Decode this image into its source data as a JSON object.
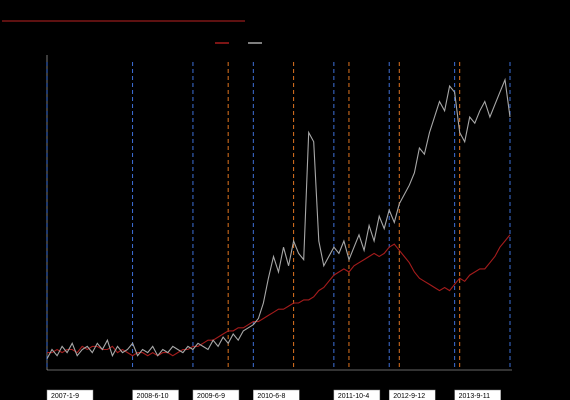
{
  "chart_data": {
    "type": "line",
    "categories": [
      "2007-1-9",
      null,
      null,
      null,
      null,
      null,
      null,
      null,
      null,
      null,
      null,
      null,
      null,
      null,
      null,
      null,
      null,
      "2008-6-10",
      null,
      null,
      null,
      null,
      null,
      null,
      null,
      null,
      null,
      null,
      null,
      "2009-6-9",
      null,
      null,
      null,
      null,
      null,
      null,
      null,
      null,
      null,
      null,
      null,
      "2010-6-8",
      null,
      null,
      null,
      null,
      null,
      null,
      null,
      null,
      null,
      null,
      null,
      null,
      null,
      null,
      null,
      "2011-10-4",
      null,
      null,
      null,
      null,
      null,
      null,
      null,
      null,
      null,
      null,
      "2012-9-12",
      null,
      null,
      null,
      null,
      null,
      null,
      null,
      null,
      null,
      null,
      null,
      null,
      "2013-9-11",
      null,
      null,
      null,
      null,
      null,
      null,
      null,
      null,
      null,
      null,
      null
    ],
    "series": [
      {
        "color": "#a51c1c",
        "values": [
          4,
          4,
          5,
          4,
          5,
          5,
          4,
          6,
          5,
          6,
          6,
          5,
          5,
          6,
          4,
          5,
          4,
          3,
          4,
          4,
          3,
          4,
          3,
          4,
          4,
          3,
          4,
          5,
          5,
          6,
          6,
          7,
          8,
          8,
          9,
          10,
          11,
          11,
          12,
          12,
          13,
          14,
          14,
          15,
          16,
          17,
          18,
          18,
          19,
          20,
          20,
          21,
          21,
          22,
          24,
          25,
          27,
          29,
          30,
          31,
          30,
          32,
          33,
          34,
          35,
          36,
          35,
          36,
          38,
          39,
          37,
          35,
          33,
          30,
          28,
          27,
          26,
          25,
          24,
          25,
          24,
          26,
          28,
          27,
          29,
          30,
          31,
          31,
          33,
          35,
          38,
          40,
          42
        ]
      },
      {
        "color": "#a8a8a8",
        "values": [
          2,
          5,
          3,
          6,
          4,
          7,
          3,
          5,
          6,
          4,
          7,
          5,
          8,
          3,
          6,
          4,
          5,
          7,
          3,
          5,
          4,
          6,
          3,
          5,
          4,
          6,
          5,
          4,
          6,
          5,
          7,
          6,
          5,
          8,
          6,
          9,
          7,
          10,
          8,
          11,
          12,
          13,
          15,
          20,
          28,
          35,
          30,
          38,
          32,
          40,
          36,
          34,
          75,
          72,
          40,
          32,
          35,
          38,
          36,
          40,
          34,
          38,
          42,
          37,
          45,
          40,
          48,
          44,
          50,
          46,
          52,
          55,
          58,
          62,
          70,
          68,
          75,
          80,
          85,
          82,
          90,
          88,
          75,
          72,
          80,
          78,
          82,
          85,
          80,
          84,
          88,
          92,
          80
        ]
      }
    ],
    "vlines": [
      {
        "at": 0,
        "color": "#3d6fd8"
      },
      {
        "at": 17,
        "color": "#3d6fd8"
      },
      {
        "at": 29,
        "color": "#3d6fd8"
      },
      {
        "at": 36,
        "color": "#e0741f"
      },
      {
        "at": 41,
        "color": "#3d6fd8"
      },
      {
        "at": 49,
        "color": "#e0741f"
      },
      {
        "at": 57,
        "color": "#3d6fd8"
      },
      {
        "at": 60,
        "color": "#e0741f"
      },
      {
        "at": 68,
        "color": "#3d6fd8"
      },
      {
        "at": 70,
        "color": "#e0741f"
      },
      {
        "at": 81,
        "color": "#3d6fd8"
      },
      {
        "at": 82,
        "color": "#e0741f"
      },
      {
        "at": 92,
        "color": "#3d6fd8"
      }
    ],
    "ylim": [
      0,
      100
    ]
  }
}
